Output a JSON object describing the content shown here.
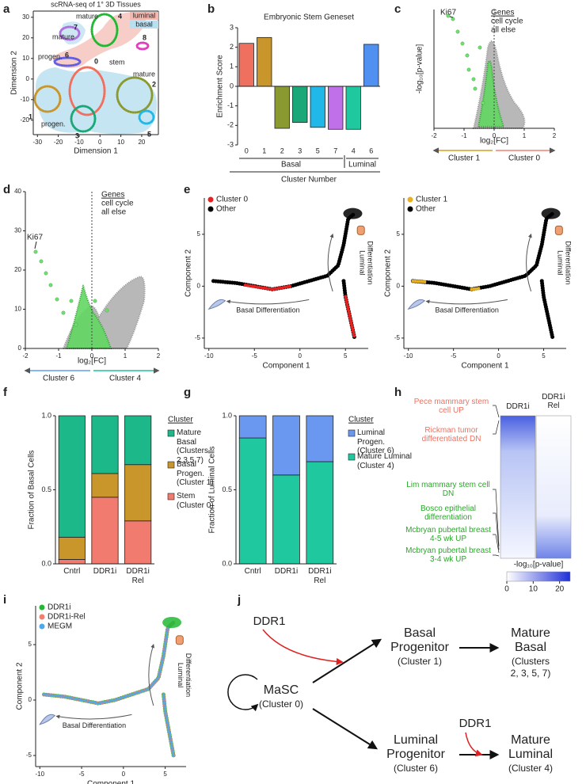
{
  "chart_data": [
    {
      "panel_label": "a",
      "type": "scatter",
      "title": "scRNA-seq of 1° 3D Tissues",
      "xlabel": "Dimension 1",
      "ylabel": "Dimension 2",
      "xlim": [
        -32,
        28
      ],
      "xticks": [
        -30,
        -20,
        -10,
        0,
        10,
        20
      ],
      "ylim": [
        -27,
        33
      ],
      "yticks": [
        -20,
        -10,
        0,
        10,
        20,
        30
      ],
      "legend": [
        {
          "name": "luminal",
          "color": "#f4b8b0"
        },
        {
          "name": "basal",
          "color": "#b8dff0"
        }
      ],
      "annotations": [
        "mature",
        "7",
        "mature",
        "4",
        "8",
        "progen.",
        "6",
        "0",
        "stem",
        "mature",
        "2",
        "1",
        "progen.",
        "3",
        "5"
      ]
    },
    {
      "panel_label": "b",
      "type": "bar",
      "title": "Embryonic Stem Geneset",
      "ylabel": "Enrichment Score",
      "xlabel": "Cluster Number",
      "categories": [
        "0",
        "1",
        "2",
        "3",
        "5",
        "7",
        "4",
        "6"
      ],
      "values": [
        2.2,
        2.5,
        -2.15,
        -1.85,
        -2.1,
        -2.2,
        -2.2,
        2.15
      ],
      "colors": [
        "#f07060",
        "#c8962a",
        "#8a9a30",
        "#1aa878",
        "#20b8e8",
        "#c070e8",
        "#20c8a0",
        "#5090f0"
      ],
      "ylim": [
        -3,
        3
      ],
      "yticks": [
        -3,
        -2,
        -1,
        0,
        1,
        2,
        3
      ],
      "groups": [
        "Basal",
        "Luminal"
      ]
    },
    {
      "panel_label": "c",
      "type": "scatter",
      "xlabel": "log₂[FC]",
      "ylabel": "-log₁₀[p-value]",
      "xlim": [
        -2,
        2
      ],
      "xticks": [
        -2,
        -1,
        0,
        1,
        2
      ],
      "legend_title": "Genes",
      "legend": [
        {
          "name": "cell cycle",
          "color": "#4cd44c"
        },
        {
          "name": "all else",
          "color": "#aaaaaa"
        }
      ],
      "annotations": [
        "Ki67"
      ],
      "directions": [
        {
          "name": "Cluster 1",
          "color": "#d4a020"
        },
        {
          "name": "Cluster 0",
          "color": "#f08070"
        }
      ]
    },
    {
      "panel_label": "d",
      "type": "scatter",
      "xlabel": "log₂[FC]",
      "xlim": [
        -2,
        2
      ],
      "xticks": [
        -2,
        -1,
        0,
        1,
        2
      ],
      "ylim": [
        0,
        40
      ],
      "yticks": [
        0,
        10,
        20,
        30,
        40
      ],
      "legend_title": "Genes",
      "legend": [
        {
          "name": "cell cycle",
          "color": "#4cd44c"
        },
        {
          "name": "all else",
          "color": "#aaaaaa"
        }
      ],
      "annotations": [
        "Ki67"
      ],
      "directions": [
        {
          "name": "Cluster 6",
          "color": "#5aa0f0"
        },
        {
          "name": "Cluster 4",
          "color": "#20c0a0"
        }
      ]
    },
    {
      "panel_label": "e",
      "type": "scatter",
      "xlabel": "Component 1",
      "ylabel": "Component 2",
      "xlim": [
        -10.5,
        7.5
      ],
      "xticks": [
        -10,
        -5,
        0,
        5
      ],
      "ylim": [
        -6,
        8.5
      ],
      "yticks": [
        -5,
        0,
        5
      ],
      "legend": [
        {
          "name": "Cluster 0",
          "color": "#e82020"
        },
        {
          "name": "Other",
          "color": "#000000"
        }
      ],
      "luminal_note": [
        "Luminal",
        "Differentiation"
      ],
      "basal_note": "Basal Differentiation"
    },
    {
      "type": "scatter",
      "xlabel": "Component 1",
      "ylabel": "Component 2",
      "xlim": [
        -10.5,
        7.5
      ],
      "xticks": [
        -10,
        -5,
        0,
        5
      ],
      "ylim": [
        -6,
        8.5
      ],
      "yticks": [
        -5,
        0,
        5
      ],
      "legend": [
        {
          "name": "Cluster 1",
          "color": "#e8b020"
        },
        {
          "name": "Other",
          "color": "#000000"
        }
      ],
      "luminal_note": [
        "Luminal",
        "Differentiation"
      ],
      "basal_note": "Basal Differentiation"
    },
    {
      "panel_label": "f",
      "type": "stacked_bar",
      "ylabel": "Fraction of Basal Cells",
      "categories": [
        "Cntrl",
        "DDR1i",
        "DDR1i Rel"
      ],
      "ylim": [
        0,
        1
      ],
      "yticks": [
        {
          "value": 0,
          "label": "0.0"
        },
        0.5,
        {
          "value": 1,
          "label": "1.0"
        }
      ],
      "legend_title": "Cluster",
      "series": [
        {
          "name": "Stem (Cluster 0)",
          "color": "#f27b70",
          "values": [
            0.03,
            0.45,
            0.29
          ]
        },
        {
          "name": "Basal Progen. (Cluster 1)",
          "color": "#c8962a",
          "values": [
            0.15,
            0.16,
            0.38
          ]
        },
        {
          "name": "Mature Basal (Clusters 2,3,5,7)",
          "color": "#1db88a",
          "values": [
            0.82,
            0.39,
            0.33
          ]
        }
      ]
    },
    {
      "panel_label": "g",
      "type": "stacked_bar",
      "ylabel": "Fraction of Luminal Cells",
      "categories": [
        "Cntrl",
        "DDR1i",
        "DDR1i Rel"
      ],
      "ylim": [
        0,
        1
      ],
      "yticks": [
        {
          "value": 0,
          "label": "0.0"
        },
        0.5,
        {
          "value": 1,
          "label": "1.0"
        }
      ],
      "legend_title": "Cluster",
      "series": [
        {
          "name": "Mature Luminal (Cluster 4)",
          "color": "#20c8a0",
          "values": [
            0.85,
            0.6,
            0.69
          ]
        },
        {
          "name": "Luminal Progen. (Cluster 6)",
          "color": "#6a98f0",
          "values": [
            0.15,
            0.4,
            0.31
          ]
        }
      ]
    },
    {
      "panel_label": "h",
      "type": "heatmap",
      "columns": [
        "DDR1i",
        "DDR1i Rel"
      ],
      "up_labels": [
        "Pece mammary stem cell UP",
        "Rickman tumor differentiated DN"
      ],
      "down_labels": [
        "Lim mammary stem cell DN",
        "Bosco epithelial differentiation",
        "Mcbryan pubertal breast 4-5 wk UP",
        "Mcbryan pubertal breast 3-4 wk UP"
      ],
      "colorbar_label": "-log₁₀[p-value]",
      "clim": [
        0,
        24
      ],
      "cticks": [
        0,
        10,
        20
      ]
    },
    {
      "panel_label": "i",
      "type": "scatter",
      "xlabel": "Component 1",
      "ylabel": "Component 2",
      "xlim": [
        -10.5,
        7.5
      ],
      "xticks": [
        -10,
        -5,
        0,
        5
      ],
      "ylim": [
        -6,
        8.5
      ],
      "yticks": [
        -5,
        0,
        5
      ],
      "legend": [
        {
          "name": "DDR1i",
          "color": "#22b833"
        },
        {
          "name": "DDR1i-Rel",
          "color": "#f08070"
        },
        {
          "name": "MEGM",
          "color": "#50a8e8"
        }
      ],
      "luminal_note": [
        "Luminal",
        "Differentiation"
      ],
      "basal_note": "Basal Differentiation"
    }
  ],
  "diagram": {
    "panel_label": "j",
    "regulators": [
      "DDR1",
      "DDR1"
    ],
    "nodes": [
      {
        "lines": [
          "MaSC"
        ],
        "sub_lines": [
          "(Cluster 0)"
        ]
      },
      {
        "lines": [
          "Basal",
          "Progenitor"
        ],
        "sub_lines": [
          "(Cluster 1)"
        ]
      },
      {
        "lines": [
          "Mature",
          "Basal"
        ],
        "sub_lines": [
          "(Clusters",
          "2, 3, 5, 7)"
        ]
      },
      {
        "lines": [
          "Luminal",
          "Progenitor"
        ],
        "sub_lines": [
          "(Cluster 6)"
        ]
      },
      {
        "lines": [
          "Mature",
          "Luminal"
        ],
        "sub_lines": [
          "(Cluster 4)"
        ]
      }
    ]
  }
}
